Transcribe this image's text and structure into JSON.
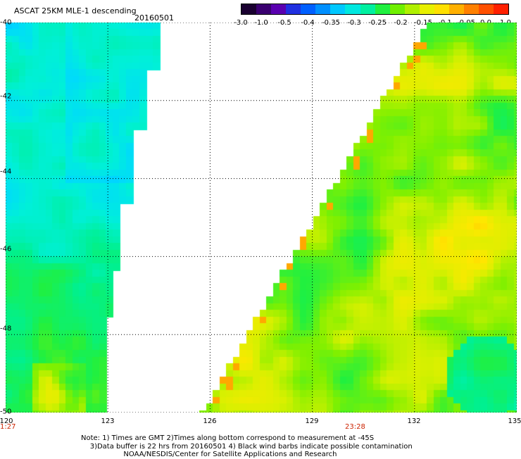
{
  "title": "ASCAT 25KM MLE-1  descending",
  "date": "20160501",
  "colorbar": {
    "labels": [
      "-3.0",
      "-1.0",
      "-0.5",
      "-0.4",
      "-0.35",
      "-0.3",
      "-0.25",
      "-0.2",
      "-0.15",
      "-0.1",
      "-0.05",
      "0.0",
      "1.0"
    ],
    "colors": [
      "#1a0030",
      "#3a0070",
      "#5a00b0",
      "#2030e0",
      "#0060ff",
      "#0090ff",
      "#00c8ff",
      "#00e8e0",
      "#00f0a0",
      "#20f040",
      "#70f000",
      "#b0f000",
      "#e8f000",
      "#ffe000",
      "#ffb000",
      "#ff8000",
      "#ff5000",
      "#ff2000"
    ]
  },
  "map": {
    "lat_range": [
      -50,
      -40
    ],
    "lon_range": [
      120,
      135
    ],
    "lat_labels": [
      "-40",
      "-42",
      "-44",
      "-46",
      "-48",
      "-50"
    ],
    "lon_labels": [
      "120",
      "123",
      "126",
      "129",
      "132",
      "135"
    ],
    "time_labels": [
      "1:27",
      "23:28"
    ]
  },
  "notes": {
    "line1": "Note: 1) Times are GMT 2)Times along bottom correspond to measurement at -45S",
    "line2": "3)Data buffer is 22 hrs from 20160501 4) Black wind barbs indicate possible contamination",
    "line3": "NOAA/NESDIS/Center for Satellite Applications and Research"
  }
}
